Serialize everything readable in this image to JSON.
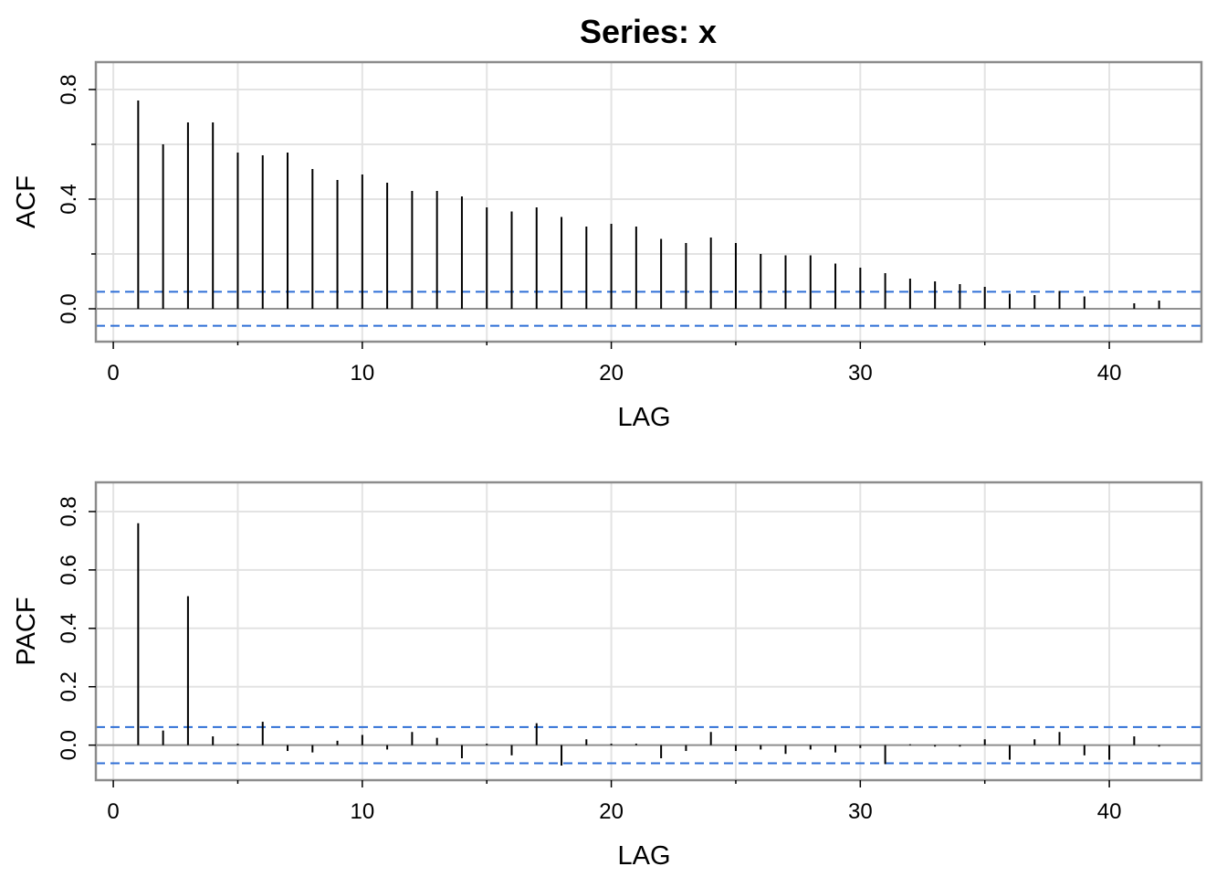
{
  "chart_data": [
    {
      "type": "bar",
      "title": "Series:  x",
      "xlabel": "LAG",
      "ylabel": "ACF",
      "xlim": [
        -0.7,
        43.7
      ],
      "ylim": [
        -0.12,
        0.9
      ],
      "xticks": [
        0,
        10,
        20,
        30,
        40
      ],
      "xtick_labels": [
        "0",
        "10",
        "20",
        "30",
        "40"
      ],
      "xminor": [
        5,
        15,
        25,
        35
      ],
      "yticks": [
        0.0,
        0.4,
        0.8
      ],
      "ytick_labels": [
        "0.0",
        "0.4",
        "0.8"
      ],
      "yminor": [
        0.2,
        0.6
      ],
      "grid": true,
      "confidence_bounds": [
        0.062,
        -0.062
      ],
      "lags": [
        1,
        2,
        3,
        4,
        5,
        6,
        7,
        8,
        9,
        10,
        11,
        12,
        13,
        14,
        15,
        16,
        17,
        18,
        19,
        20,
        21,
        22,
        23,
        24,
        25,
        26,
        27,
        28,
        29,
        30,
        31,
        32,
        33,
        34,
        35,
        36,
        37,
        38,
        39,
        40,
        41,
        42
      ],
      "values": [
        0.76,
        0.6,
        0.68,
        0.68,
        0.57,
        0.56,
        0.57,
        0.51,
        0.47,
        0.49,
        0.46,
        0.43,
        0.43,
        0.41,
        0.37,
        0.355,
        0.37,
        0.335,
        0.3,
        0.31,
        0.3,
        0.255,
        0.24,
        0.26,
        0.24,
        0.2,
        0.195,
        0.195,
        0.165,
        0.15,
        0.13,
        0.11,
        0.1,
        0.09,
        0.08,
        0.055,
        0.05,
        0.065,
        0.045,
        0.0,
        0.02,
        0.03
      ]
    },
    {
      "type": "bar",
      "title": "",
      "xlabel": "LAG",
      "ylabel": "PACF",
      "xlim": [
        -0.7,
        43.7
      ],
      "ylim": [
        -0.12,
        0.9
      ],
      "xticks": [
        0,
        10,
        20,
        30,
        40
      ],
      "xtick_labels": [
        "0",
        "10",
        "20",
        "30",
        "40"
      ],
      "xminor": [
        5,
        15,
        25,
        35
      ],
      "yticks": [
        0.0,
        0.2,
        0.4,
        0.6,
        0.8
      ],
      "ytick_labels": [
        "0.0",
        "0.2",
        "0.4",
        "0.6",
        "0.8"
      ],
      "yminor": [],
      "grid": true,
      "confidence_bounds": [
        0.062,
        -0.062
      ],
      "lags": [
        1,
        2,
        3,
        4,
        5,
        6,
        7,
        8,
        9,
        10,
        11,
        12,
        13,
        14,
        15,
        16,
        17,
        18,
        19,
        20,
        21,
        22,
        23,
        24,
        25,
        26,
        27,
        28,
        29,
        30,
        31,
        32,
        33,
        34,
        35,
        36,
        37,
        38,
        39,
        40,
        41,
        42
      ],
      "values": [
        0.76,
        0.05,
        0.51,
        0.03,
        0.005,
        0.08,
        -0.02,
        -0.025,
        0.015,
        0.035,
        -0.015,
        0.045,
        0.025,
        -0.045,
        0.005,
        -0.035,
        0.075,
        -0.07,
        0.02,
        0.005,
        0.005,
        -0.045,
        -0.02,
        0.045,
        -0.02,
        -0.015,
        -0.03,
        -0.015,
        -0.025,
        -0.01,
        -0.065,
        0.003,
        -0.005,
        -0.005,
        0.02,
        -0.05,
        0.02,
        0.045,
        -0.035,
        -0.05,
        0.03,
        -0.005
      ]
    }
  ]
}
